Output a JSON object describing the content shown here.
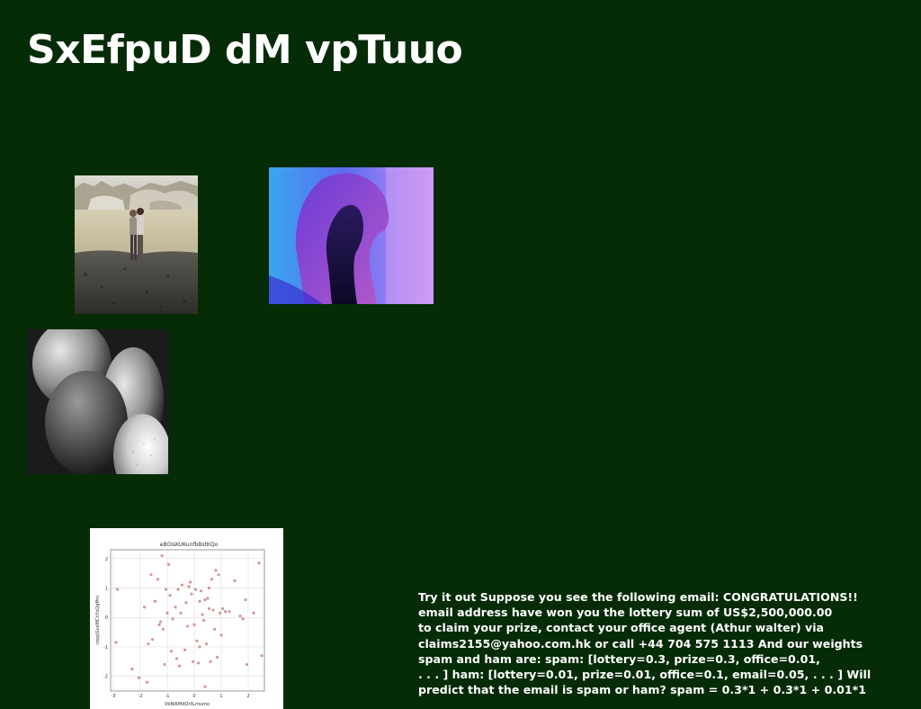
{
  "page": {
    "title": "SxEfpuD dM vpTuuo",
    "background_color": "#052b07"
  },
  "images": [
    {
      "name": "landscape-photo",
      "description_icon": "photo-couple-by-lake"
    },
    {
      "name": "silhouette-photo",
      "description_icon": "photo-profile-silhouette-purple-blue"
    },
    {
      "name": "abstract-photo",
      "description_icon": "photo-monochrome-abstract-shapes"
    }
  ],
  "chart_data": {
    "type": "scatter",
    "title": "eBOisKUKunfbBstKQo",
    "xlabel": "VbNlKMdQrIiLmumo",
    "ylabel": "rzepjGveMCnYsQgMrv",
    "xlim": [
      -3.1,
      2.6
    ],
    "ylim": [
      -2.5,
      2.3
    ],
    "xticks": [
      "-3",
      "-2",
      "-1",
      "0",
      "1",
      "2"
    ],
    "yticks": [
      "-2",
      "-1",
      "0",
      "1",
      "2"
    ],
    "grid": true,
    "point_color": "#c98686",
    "points": [
      [
        -2.85,
        0.95
      ],
      [
        -2.9,
        -0.85
      ],
      [
        -2.3,
        -1.75
      ],
      [
        -2.05,
        -2.05
      ],
      [
        -1.85,
        0.35
      ],
      [
        -1.75,
        -2.2
      ],
      [
        -1.6,
        1.45
      ],
      [
        -1.55,
        -0.75
      ],
      [
        -1.45,
        0.55
      ],
      [
        -1.35,
        1.3
      ],
      [
        -1.3,
        -0.25
      ],
      [
        -1.25,
        -0.15
      ],
      [
        -1.2,
        2.1
      ],
      [
        -1.15,
        -0.4
      ],
      [
        -1.1,
        -1.6
      ],
      [
        -1.05,
        0.95
      ],
      [
        -1.0,
        0.15
      ],
      [
        -0.95,
        1.8
      ],
      [
        -0.9,
        0.75
      ],
      [
        -0.85,
        -1.15
      ],
      [
        -0.8,
        -0.05
      ],
      [
        -0.7,
        0.35
      ],
      [
        -0.65,
        -1.4
      ],
      [
        -0.6,
        0.95
      ],
      [
        -0.55,
        -1.65
      ],
      [
        -0.5,
        0.15
      ],
      [
        -0.45,
        1.1
      ],
      [
        -0.35,
        -1.1
      ],
      [
        -0.3,
        0.5
      ],
      [
        -0.25,
        -0.3
      ],
      [
        -0.15,
        1.2
      ],
      [
        -0.1,
        0.8
      ],
      [
        -0.05,
        -1.5
      ],
      [
        0.0,
        -0.25
      ],
      [
        0.05,
        0.95
      ],
      [
        0.1,
        -0.8
      ],
      [
        0.15,
        -1.55
      ],
      [
        0.2,
        0.55
      ],
      [
        0.25,
        0.9
      ],
      [
        0.3,
        0.1
      ],
      [
        0.35,
        -0.1
      ],
      [
        0.4,
        0.6
      ],
      [
        0.45,
        -0.9
      ],
      [
        0.5,
        0.65
      ],
      [
        0.55,
        0.3
      ],
      [
        0.6,
        -1.5
      ],
      [
        0.65,
        1.3
      ],
      [
        0.7,
        0.25
      ],
      [
        0.75,
        -0.4
      ],
      [
        0.8,
        1.6
      ],
      [
        0.85,
        -1.35
      ],
      [
        0.9,
        1.45
      ],
      [
        0.95,
        0.15
      ],
      [
        1.05,
        0.3
      ],
      [
        1.15,
        0.2
      ],
      [
        1.3,
        0.2
      ],
      [
        1.5,
        1.25
      ],
      [
        1.7,
        0.05
      ],
      [
        1.8,
        -0.05
      ],
      [
        1.9,
        0.6
      ],
      [
        1.95,
        -1.6
      ],
      [
        2.2,
        0.15
      ],
      [
        2.4,
        1.85
      ],
      [
        2.5,
        -1.3
      ],
      [
        0.4,
        -2.35
      ],
      [
        -0.2,
        1.05
      ],
      [
        0.55,
        1.0
      ],
      [
        1.0,
        -0.6
      ],
      [
        -1.7,
        -0.9
      ],
      [
        0.2,
        -1.0
      ]
    ]
  },
  "body_text": {
    "lines": [
      "Try it out Suppose you see the following email: CONGRATULATIONS!!",
      "email address have won you the lottery sum of US$2,500,000.00",
      "to claim your prize, contact your office agent (Athur walter) via",
      "claims2155@yahoo.com.hk or call +44 704 575 1113 And our weights",
      "spam and ham are: spam: [lottery=0.3, prize=0.3, office=0.01,",
      ". . . ] ham: [lottery=0.01, prize=0.01, office=0.1, email=0.05, . . . ] Will",
      "predict that the email is spam or ham? spam = 0.3*1 + 0.3*1 + 0.01*1"
    ]
  }
}
